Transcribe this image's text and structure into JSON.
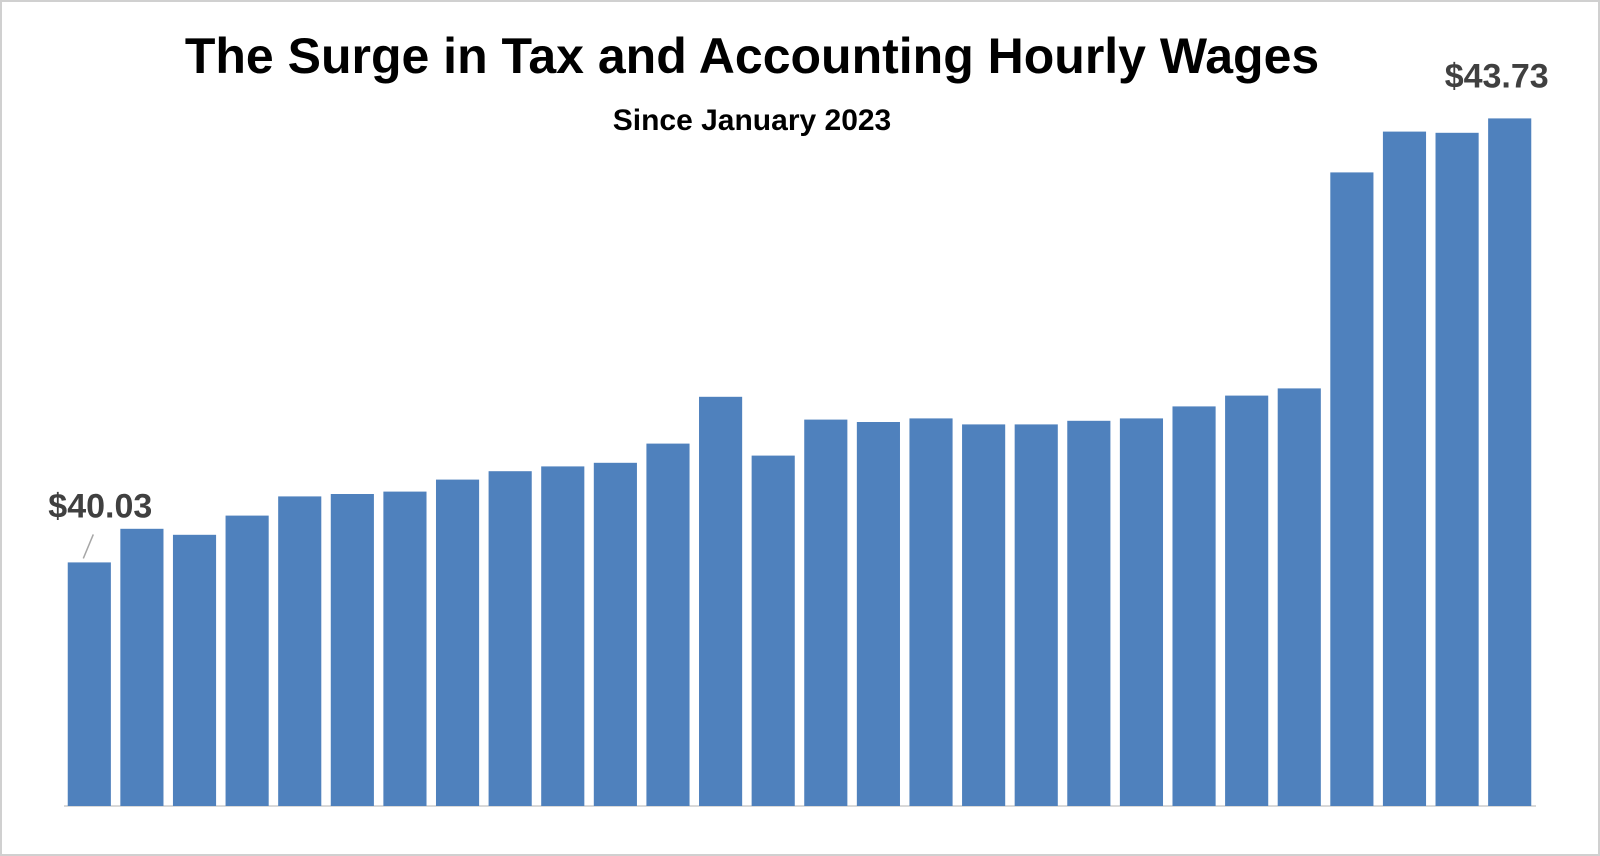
{
  "chart_data": {
    "type": "bar",
    "title": "The Surge in Tax and Accounting Hourly Wages",
    "subtitle": "Since January 2023",
    "categories": [
      null,
      null,
      null,
      null,
      null,
      null,
      null,
      null,
      null,
      null,
      null,
      null,
      null,
      null,
      null,
      null,
      null,
      null,
      null,
      null,
      null,
      null,
      null,
      null,
      null,
      null,
      null,
      null
    ],
    "values": [
      40.03,
      40.31,
      40.26,
      40.42,
      40.58,
      40.6,
      40.62,
      40.72,
      40.79,
      40.83,
      40.86,
      41.02,
      41.41,
      40.92,
      41.22,
      41.2,
      41.23,
      41.18,
      41.18,
      41.21,
      41.23,
      41.33,
      41.42,
      41.48,
      43.28,
      43.62,
      43.61,
      43.73
    ],
    "value_labels": [
      "$40.03",
      null,
      null,
      null,
      null,
      null,
      null,
      null,
      null,
      null,
      null,
      null,
      null,
      null,
      null,
      null,
      null,
      null,
      null,
      null,
      null,
      null,
      null,
      null,
      null,
      null,
      null,
      "$43.73"
    ],
    "color": "#4f81bd",
    "ylim": [
      38,
      44
    ],
    "grid": false
  }
}
